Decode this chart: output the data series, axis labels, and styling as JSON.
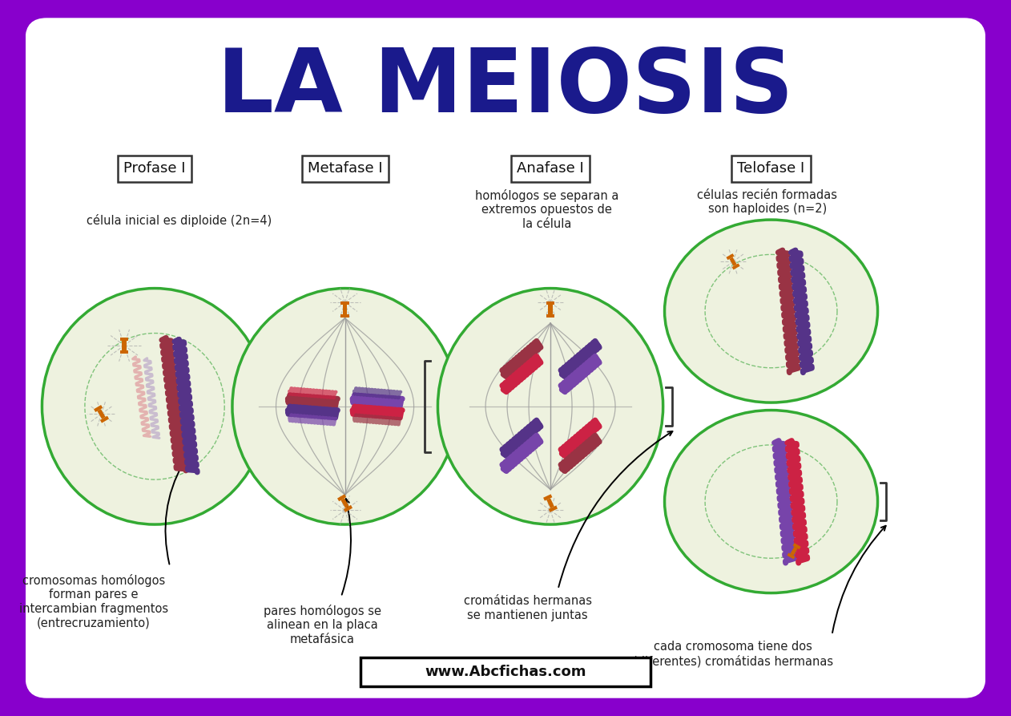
{
  "title": "LA MEIOSIS",
  "title_color": "#1a1a8c",
  "background_outer": "#8800cc",
  "background_inner": "#ffffff",
  "phases": [
    "Profase I",
    "Metafase I",
    "Anafase I",
    "Telofase I"
  ],
  "cell_outer_color": "#33aa33",
  "cell_fill_color": "#eef2df",
  "spindle_color": "#999999",
  "centromere_color": "#cc6600",
  "chrom_red": "#993344",
  "chrom_purple": "#553388",
  "chrom_red2": "#cc2244",
  "chrom_purple2": "#7744aa",
  "annotation_fontsize": 10.5,
  "phase_fontsize": 13,
  "title_fontsize": 80,
  "footer_text": "www.Abcfichas.com",
  "profase_top_note": "célula inicial es diploide (2n=4)",
  "profase_bot_note": "cromosomas homólogos\nforman pares e\nintercambian fragmentos\n(entrecruzamiento)",
  "metafase_bot_note": "pares homólogos se\nalinean en la placa\nmetafásica",
  "anafase_top_note": "homólogos se separan a\nextremos opuestos de\nla célula",
  "anafase_bot_note": "cromátidas hermanas\nse mantienen juntas",
  "telofase_top_note": "células recién formadas\nson haploides (n=2)",
  "telofase_bot_note": "cada cromosoma tiene dos\n(diferentes) cromátidas hermanas"
}
